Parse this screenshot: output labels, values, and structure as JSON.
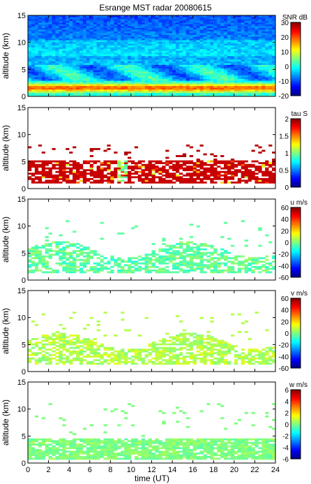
{
  "title": "Esrange MST radar 20080615",
  "xlabel": "time (UT)",
  "chart_data": {
    "type": "heatmap",
    "title": "Esrange MST radar 20080615",
    "xlabel": "time (UT)",
    "xlim": [
      0,
      24
    ],
    "x_ticks": [
      "0",
      "2",
      "4",
      "6",
      "8",
      "10",
      "12",
      "14",
      "16",
      "18",
      "20",
      "22",
      "24"
    ],
    "panels": [
      {
        "ylabel": "altitude (km)",
        "ylim": [
          0,
          15
        ],
        "y_ticks": [
          "0",
          "5",
          "10",
          "15"
        ],
        "colorbar_label": "SNR dB",
        "clim": [
          -20,
          30
        ],
        "colorbar_ticks": [
          "30",
          "20",
          "10",
          "0",
          "-10",
          "-20"
        ],
        "field": "snr"
      },
      {
        "ylabel": "altitude (km)",
        "ylim": [
          0,
          15
        ],
        "y_ticks": [
          "0",
          "5",
          "10",
          "15"
        ],
        "colorbar_label": "tau S",
        "clim": [
          0,
          2
        ],
        "colorbar_ticks": [
          "2",
          "1.5",
          "1",
          "0.5",
          "0"
        ],
        "field": "tau"
      },
      {
        "ylabel": "altitude (km)",
        "ylim": [
          0,
          15
        ],
        "y_ticks": [
          "0",
          "5",
          "10",
          "15"
        ],
        "colorbar_label": "u m/s",
        "clim": [
          -60,
          60
        ],
        "colorbar_ticks": [
          "60",
          "40",
          "20",
          "0",
          "-20",
          "-40",
          "-60"
        ],
        "field": "u"
      },
      {
        "ylabel": "altitude (km)",
        "ylim": [
          0,
          15
        ],
        "y_ticks": [
          "0",
          "5",
          "10",
          "15"
        ],
        "colorbar_label": "v m/s",
        "clim": [
          -60,
          60
        ],
        "colorbar_ticks": [
          "60",
          "40",
          "20",
          "0",
          "-20",
          "-40",
          "-60"
        ],
        "field": "v"
      },
      {
        "ylabel": "altitude (km)",
        "ylim": [
          0,
          15
        ],
        "y_ticks": [
          "0",
          "5",
          "10",
          "15"
        ],
        "colorbar_label": "w m/s",
        "clim": [
          -6,
          6
        ],
        "colorbar_ticks": [
          "6",
          "4",
          "2",
          "0",
          "-2",
          "-4",
          "-6"
        ],
        "field": "w"
      }
    ]
  }
}
